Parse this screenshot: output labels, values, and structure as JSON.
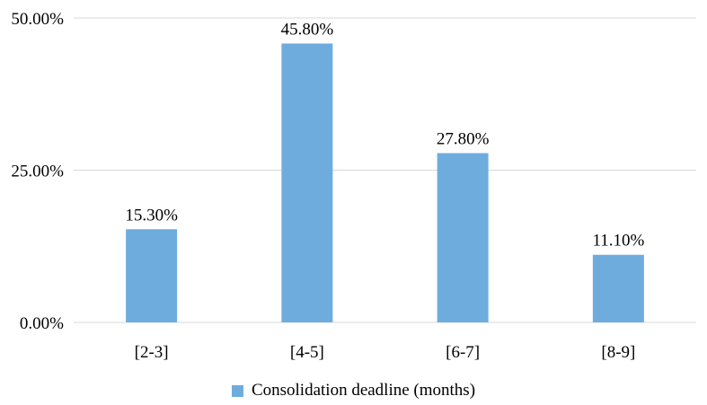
{
  "chart_data": {
    "type": "bar",
    "categories": [
      "[2-3]",
      "[4-5]",
      "[6-7]",
      "[8-9]"
    ],
    "series": [
      {
        "name": "Consolidation deadline (months)",
        "values": [
          15.3,
          45.8,
          27.8,
          11.1
        ],
        "labels": [
          "15.30%",
          "45.80%",
          "27.80%",
          "11.10%"
        ],
        "color": "#6FACDE"
      }
    ],
    "y_ticks": [
      {
        "value": 0,
        "label": "0.00%"
      },
      {
        "value": 25,
        "label": "25.00%"
      },
      {
        "value": 50,
        "label": "50.00%"
      }
    ],
    "ylim": [
      0,
      50
    ],
    "grid": true,
    "grid_color": "#D9D9D9",
    "legend_position": "bottom"
  }
}
